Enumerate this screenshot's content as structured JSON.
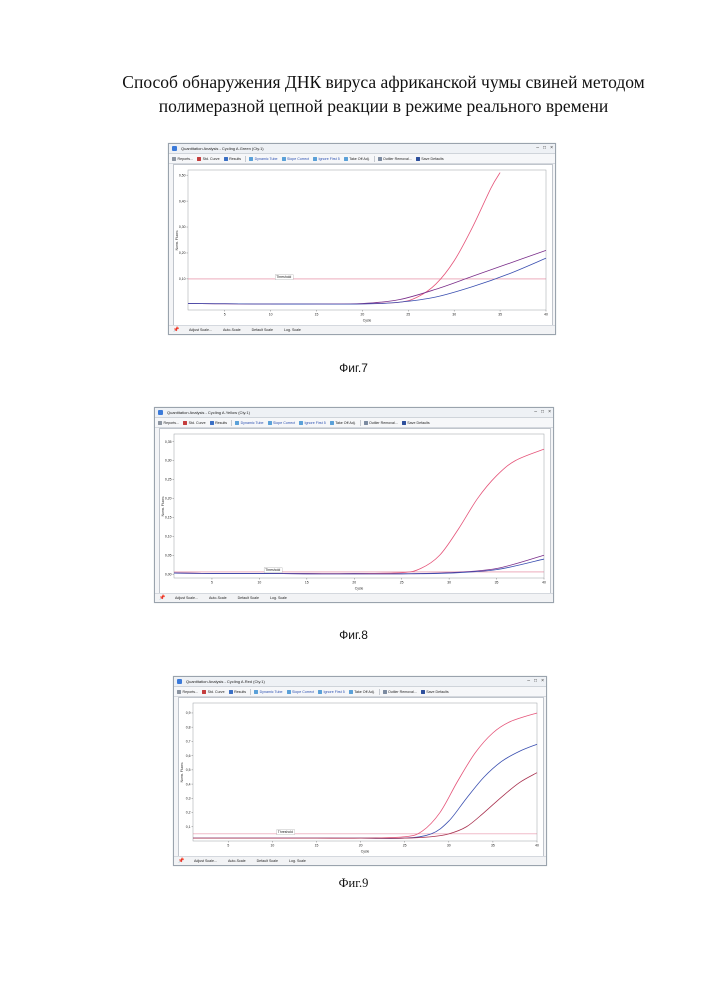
{
  "document": {
    "title_line1": "Способ обнаружения ДНК вируса африканской чумы свиней методом",
    "title_line2": "полимеразной цепной реакции в режиме реального времени"
  },
  "toolbar_labels": {
    "reports": "Reports...",
    "std_curve": "Std. Curve",
    "results": "Results",
    "dynamic_tube": "Dynamic Tube",
    "slope_correct": "Slope Correct",
    "take_off_adj": "Take Off Adj.",
    "outlier_removal": "Outlier Removal...",
    "save_defaults": "Save Defaults"
  },
  "bottom_labels": {
    "adjust_scale": "Adjust Scale...",
    "auto_scale": "Auto-Scale",
    "default_scale": "Default Scale",
    "log_scale": "Log. Scale"
  },
  "figures": [
    {
      "window_title": "Quantitation Analysis - Cycling A.Green (Cty.1)",
      "ignore_first_label": "Ignore First 5",
      "caption": "Фиг.7",
      "chart_data": {
        "type": "line",
        "xlabel": "Cycle",
        "ylabel": "Norm. Fluoro.",
        "x_ticks": [
          5,
          10,
          15,
          20,
          25,
          30,
          35,
          40
        ],
        "y_ticks": [
          0.1,
          0.2,
          0.3,
          0.4,
          0.5
        ],
        "y_tick_labels": [
          "0,10",
          "0,20",
          "0,30",
          "0,40",
          "0,50"
        ],
        "xlim": [
          1,
          40
        ],
        "ylim": [
          -0.02,
          0.52
        ],
        "threshold_label": "Threshold",
        "threshold": 0.1,
        "series": [
          {
            "color": "#e5557a",
            "x": [
              1,
              5,
              10,
              15,
              20,
              24,
              26,
              28,
              30,
              32,
              34,
              35
            ],
            "y": [
              0.005,
              0.004,
              0.003,
              0.003,
              0.004,
              0.01,
              0.03,
              0.08,
              0.17,
              0.3,
              0.45,
              0.51
            ]
          },
          {
            "color": "#7a2e8a",
            "x": [
              1,
              5,
              10,
              15,
              20,
              24,
              28,
              32,
              36,
              40
            ],
            "y": [
              0.005,
              0.004,
              0.003,
              0.003,
              0.005,
              0.02,
              0.06,
              0.11,
              0.16,
              0.21
            ]
          },
          {
            "color": "#3a4fb0",
            "x": [
              1,
              5,
              10,
              15,
              20,
              24,
              28,
              32,
              36,
              40
            ],
            "y": [
              0.005,
              0.004,
              0.003,
              0.003,
              0.003,
              0.01,
              0.03,
              0.07,
              0.12,
              0.18
            ]
          }
        ]
      }
    },
    {
      "window_title": "Quantitation Analysis - Cycling A.Yellow (Cty.1)",
      "ignore_first_label": "Ignore First 5",
      "caption": "Фиг.8",
      "chart_data": {
        "type": "line",
        "xlabel": "Cycle",
        "ylabel": "Norm. Fluoro.",
        "x_ticks": [
          5,
          10,
          15,
          20,
          25,
          30,
          35,
          40
        ],
        "y_ticks": [
          0.0,
          0.05,
          0.1,
          0.15,
          0.2,
          0.25,
          0.3,
          0.35
        ],
        "y_tick_labels": [
          "0,00",
          "0,05",
          "0,10",
          "0,15",
          "0,20",
          "0,25",
          "0,30",
          "0,35"
        ],
        "xlim": [
          1,
          40
        ],
        "ylim": [
          -0.01,
          0.37
        ],
        "threshold_label": "Threshold",
        "threshold": 0.006,
        "series": [
          {
            "color": "#e5557a",
            "x": [
              1,
              5,
              10,
              15,
              20,
              25,
              27,
              29,
              31,
              33,
              35,
              37,
              40
            ],
            "y": [
              0.003,
              0.002,
              0.002,
              0.002,
              0.002,
              0.004,
              0.015,
              0.05,
              0.12,
              0.2,
              0.26,
              0.3,
              0.33
            ]
          },
          {
            "color": "#7a2e8a",
            "x": [
              1,
              5,
              10,
              15,
              20,
              25,
              30,
              35,
              40
            ],
            "y": [
              0.003,
              0.002,
              0.002,
              0.001,
              0.001,
              0.001,
              0.004,
              0.015,
              0.05
            ]
          },
          {
            "color": "#3a4fb0",
            "x": [
              1,
              5,
              10,
              15,
              20,
              25,
              30,
              35,
              40
            ],
            "y": [
              0.003,
              0.002,
              0.002,
              0.001,
              0.001,
              0.001,
              0.003,
              0.012,
              0.04
            ]
          }
        ]
      }
    },
    {
      "window_title": "Quantitation Analysis - Cycling A.Red (Cty.1)",
      "ignore_first_label": "Ignore First 5",
      "caption": "Фиг.9",
      "chart_data": {
        "type": "line",
        "xlabel": "Cycle",
        "ylabel": "Norm. Fluoro.",
        "x_ticks": [
          5,
          10,
          15,
          20,
          25,
          30,
          35,
          40
        ],
        "y_ticks": [
          0.1,
          0.2,
          0.3,
          0.4,
          0.5,
          0.6,
          0.7,
          0.8,
          0.9
        ],
        "y_tick_labels": [
          "0,1",
          "0,2",
          "0,3",
          "0,4",
          "0,5",
          "0,6",
          "0,7",
          "0,8",
          "0,9"
        ],
        "xlim": [
          1,
          40
        ],
        "ylim": [
          0.0,
          0.97
        ],
        "threshold_label": "Threshold",
        "threshold": 0.05,
        "series": [
          {
            "color": "#e5557a",
            "x": [
              1,
              5,
              10,
              15,
              20,
              25,
              27,
              29,
              31,
              33,
              35,
              37,
              40
            ],
            "y": [
              0.02,
              0.02,
              0.02,
              0.02,
              0.02,
              0.03,
              0.07,
              0.2,
              0.42,
              0.62,
              0.76,
              0.84,
              0.9
            ]
          },
          {
            "color": "#3a4fb0",
            "x": [
              1,
              5,
              10,
              15,
              20,
              25,
              28,
              30,
              32,
              34,
              36,
              38,
              40
            ],
            "y": [
              0.02,
              0.02,
              0.02,
              0.02,
              0.02,
              0.02,
              0.05,
              0.14,
              0.3,
              0.45,
              0.56,
              0.63,
              0.68
            ]
          },
          {
            "color": "#a8304e",
            "x": [
              1,
              5,
              10,
              15,
              20,
              25,
              28,
              30,
              32,
              34,
              36,
              38,
              40
            ],
            "y": [
              0.02,
              0.02,
              0.02,
              0.02,
              0.02,
              0.02,
              0.03,
              0.05,
              0.1,
              0.2,
              0.31,
              0.41,
              0.48
            ]
          }
        ]
      }
    }
  ]
}
